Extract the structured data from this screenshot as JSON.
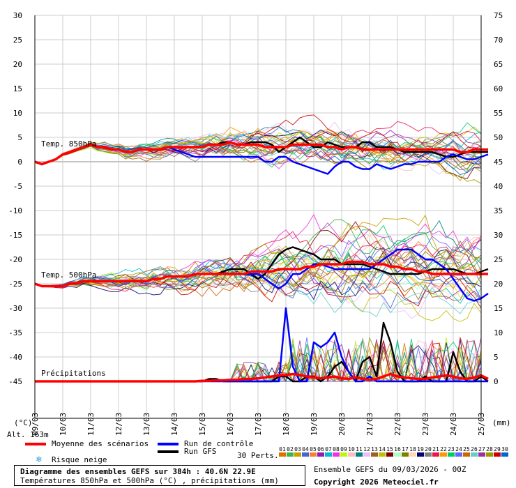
{
  "chart_data": {
    "type": "line",
    "title": "Diagramme des ensembles GEFS sur 384h : 40.6N 22.9E",
    "subtitle": "Températures 850hPa et 500hPa (°C) , précipitations (mm)",
    "left_axis": {
      "label": "(°C)",
      "ticks": [
        30,
        25,
        20,
        15,
        10,
        5,
        0,
        -5,
        -10,
        -15,
        -20,
        -25,
        -30,
        -35,
        -40,
        -45
      ],
      "ylim": [
        -45,
        30
      ]
    },
    "right_axis": {
      "label": "(mm)",
      "ticks": [
        75,
        70,
        65,
        60,
        55,
        50,
        45,
        40,
        35,
        30,
        25,
        20,
        15,
        10,
        5,
        0
      ]
    },
    "x_ticks": [
      "10/03",
      "11/03",
      "12/03",
      "13/03",
      "14/03",
      "15/03",
      "16/03",
      "17/03",
      "18/03",
      "19/03",
      "20/03",
      "21/03",
      "22/03",
      "23/03",
      "24/03",
      "25/03"
    ],
    "x_start_label": "09/03",
    "altitude_label": "Alt. 163m",
    "annotations": [
      "Temp. 850hPa",
      "Temp. 500hPa",
      "Précipitations"
    ],
    "series": [
      {
        "name": "Moyenne des scénarios",
        "color": "#ff0000",
        "t850": [
          0,
          -0.5,
          0,
          0.5,
          1.5,
          2,
          2.5,
          3,
          3.5,
          3,
          3,
          2.5,
          2.5,
          2,
          2,
          2.5,
          2.5,
          2.5,
          2.5,
          3,
          3,
          3,
          3,
          3,
          3,
          3.5,
          3.5,
          3.5,
          4,
          3.5,
          3.5,
          3.5,
          3.5,
          3,
          3,
          3,
          3,
          3.5,
          3.5,
          3.5,
          3.5,
          3.5,
          3,
          3,
          2.5,
          3,
          3,
          2.5,
          2.5,
          2.5,
          2.5,
          2.5,
          2.5,
          2.5,
          2.5,
          2.5,
          2.5,
          2.5,
          2.5,
          2.5,
          2.5,
          2,
          2,
          2.5,
          2.5,
          2.5
        ],
        "t500": [
          -25,
          -25.5,
          -25.5,
          -25.5,
          -25.5,
          -25,
          -25,
          -24.5,
          -24.5,
          -24.5,
          -24.5,
          -24.5,
          -24.5,
          -24.5,
          -24.5,
          -24.5,
          -24.5,
          -24,
          -24,
          -23.5,
          -23.5,
          -23.5,
          -23.5,
          -23,
          -23,
          -23,
          -23,
          -23,
          -23,
          -23,
          -23,
          -22.5,
          -22.5,
          -22.5,
          -22.5,
          -22,
          -22,
          -22,
          -22,
          -21.5,
          -21.5,
          -21,
          -21,
          -21,
          -21,
          -20.5,
          -20.5,
          -20.5,
          -21,
          -21,
          -21,
          -21.5,
          -21.5,
          -22,
          -22,
          -22.5,
          -22.5,
          -23,
          -23,
          -23,
          -23,
          -23,
          -23,
          -23,
          -23,
          -23
        ],
        "precip": [
          0,
          0,
          0,
          0,
          0,
          0,
          0,
          0,
          0,
          0,
          0,
          0,
          0,
          0,
          0,
          0,
          0,
          0,
          0,
          0,
          0,
          0,
          0,
          0,
          0.1,
          0.1,
          0.2,
          0.2,
          0.3,
          0.3,
          0.5,
          0.5,
          0.6,
          0.8,
          1,
          1.2,
          1.3,
          1.5,
          1.3,
          1,
          0.8,
          0.6,
          0.8,
          1,
          0.6,
          0.5,
          0.8,
          0.5,
          0.3,
          0.5,
          1,
          1.5,
          1,
          0.8,
          0.6,
          0.5,
          0.5,
          0.8,
          1,
          1.2,
          1,
          0.6,
          0.5,
          0.8,
          1.2,
          0.5
        ]
      },
      {
        "name": "Run de contrôle",
        "color": "#0000ff",
        "t850": [
          0,
          -0.5,
          0,
          0.5,
          1.5,
          2,
          2.5,
          3,
          3.5,
          3,
          3,
          2.5,
          2.5,
          2,
          2,
          2.5,
          2.5,
          2.5,
          2.5,
          3,
          2.5,
          2,
          1.5,
          1,
          1,
          1,
          1,
          1,
          1,
          1,
          1,
          1,
          1,
          0,
          0,
          1,
          1,
          0,
          -0.5,
          -1,
          -1.5,
          -2,
          -2.5,
          -1,
          0,
          0,
          -1,
          -1.5,
          -1.5,
          -0.5,
          -1,
          -1.5,
          -1,
          -0.5,
          -0.5,
          0,
          0,
          0,
          0,
          1,
          1.5,
          1,
          0.5,
          0.5,
          1,
          1.5
        ],
        "t500": [
          -25,
          -25.5,
          -25.5,
          -25.5,
          -25.5,
          -25,
          -25,
          -24.5,
          -24.5,
          -24.5,
          -24.5,
          -24.5,
          -24.5,
          -24.5,
          -24.5,
          -24.5,
          -24.5,
          -24,
          -24,
          -23.5,
          -23.5,
          -23.5,
          -23.5,
          -23,
          -23,
          -23,
          -23,
          -23,
          -23,
          -23,
          -23,
          -23,
          -23,
          -24,
          -25,
          -26,
          -25,
          -23,
          -23,
          -22,
          -21,
          -21,
          -21.5,
          -22,
          -22,
          -22,
          -22,
          -22,
          -22,
          -21,
          -20,
          -19,
          -18,
          -18,
          -18,
          -19,
          -20,
          -20,
          -21,
          -22,
          -24,
          -26,
          -28,
          -28.5,
          -28,
          -27
        ],
        "precip": [
          0,
          0,
          0,
          0,
          0,
          0,
          0,
          0,
          0,
          0,
          0,
          0,
          0,
          0,
          0,
          0,
          0,
          0,
          0,
          0,
          0,
          0,
          0,
          0,
          0,
          0,
          0,
          0,
          0,
          0,
          0,
          0,
          0,
          0,
          0,
          0,
          15,
          3,
          0,
          0,
          8,
          7,
          8,
          10,
          5,
          2,
          0,
          0,
          1,
          0,
          0,
          0,
          0,
          0,
          0,
          0,
          0,
          0,
          0,
          0,
          0,
          0,
          0,
          0,
          0,
          0
        ]
      },
      {
        "name": "Run GFS",
        "color": "#000000",
        "t850": [
          0,
          -0.5,
          0,
          0.5,
          1.5,
          2,
          2.5,
          3,
          3.5,
          3,
          3,
          2.5,
          2.5,
          2,
          2,
          2.5,
          2.5,
          2.5,
          2.5,
          3,
          3,
          3,
          3,
          3,
          3,
          3.5,
          3.5,
          4,
          4,
          3.5,
          3.5,
          4,
          4,
          4,
          3.5,
          2,
          3,
          4,
          5,
          4,
          3,
          3,
          4,
          3.5,
          3,
          3,
          3,
          4,
          4,
          3,
          3,
          3,
          2.5,
          2,
          2,
          2,
          2,
          2,
          1.5,
          1,
          1,
          1.5,
          2,
          2,
          2,
          2
        ],
        "t500": [
          -25,
          -25.5,
          -25.5,
          -25.5,
          -25.5,
          -25,
          -25,
          -24.5,
          -24.5,
          -24.5,
          -24.5,
          -24.5,
          -24.5,
          -24.5,
          -24.5,
          -24.5,
          -24.5,
          -24,
          -24,
          -23.5,
          -23.5,
          -23.5,
          -23.5,
          -23,
          -23,
          -23,
          -23,
          -22.5,
          -22,
          -22,
          -22,
          -23,
          -24,
          -23,
          -21,
          -19,
          -18,
          -17.5,
          -18,
          -18.5,
          -19,
          -20,
          -20,
          -20,
          -21,
          -21,
          -21,
          -21,
          -21.5,
          -22,
          -22.5,
          -23,
          -23,
          -23,
          -23,
          -23,
          -22.5,
          -22,
          -22,
          -22,
          -22,
          -22.5,
          -23,
          -23,
          -22.5,
          -22
        ],
        "precip": [
          0,
          0,
          0,
          0,
          0,
          0,
          0,
          0,
          0,
          0,
          0,
          0,
          0,
          0,
          0,
          0,
          0,
          0,
          0,
          0,
          0,
          0,
          0,
          0,
          0,
          0.5,
          0.5,
          0,
          0,
          0,
          0,
          0,
          0,
          0,
          0,
          1,
          1,
          0,
          0,
          1,
          1,
          0,
          1,
          3,
          4,
          2,
          0,
          4,
          5,
          1,
          12,
          8,
          2,
          0,
          0,
          0,
          1,
          0,
          0,
          0,
          6,
          2,
          0,
          0,
          1,
          0
        ]
      }
    ],
    "members": 30
  },
  "legend": {
    "mean": "Moyenne des scénarios",
    "control": "Run de contrôle",
    "gfs": "Run GFS",
    "snow": "Risque neige",
    "perts": "30 Perts."
  },
  "footer": {
    "title": "Diagramme des ensembles GEFS sur 384h : 40.6N 22.9E",
    "subtitle": "Températures 850hPa et 500hPa (°C) , précipitations (mm)",
    "ensemble": "Ensemble GEFS du 09/03/2026 - 00Z",
    "copyright": "Copyright 2026 Meteociel.fr"
  },
  "perturbations": {
    "labels": [
      "01",
      "02",
      "03",
      "04",
      "05",
      "06",
      "07",
      "08",
      "09",
      "10",
      "11",
      "12",
      "13",
      "14",
      "15",
      "16",
      "17",
      "18",
      "19",
      "20",
      "21",
      "22",
      "23",
      "24",
      "25",
      "26",
      "27",
      "28",
      "29",
      "30"
    ],
    "colors": [
      "#e07000",
      "#3cb44b",
      "#c8a000",
      "#4363d8",
      "#f58231",
      "#911eb4",
      "#00bcd4",
      "#f032e6",
      "#bcf60c",
      "#fabebe",
      "#008080",
      "#e6beff",
      "#9a6324",
      "#c0c000",
      "#800000",
      "#aaffc3",
      "#808000",
      "#ffd8b1",
      "#000075",
      "#808080",
      "#e6194b",
      "#ff9900",
      "#00cc66",
      "#6666ff",
      "#cc6600",
      "#66cccc",
      "#993399",
      "#999900",
      "#cc0000",
      "#0066cc"
    ]
  }
}
